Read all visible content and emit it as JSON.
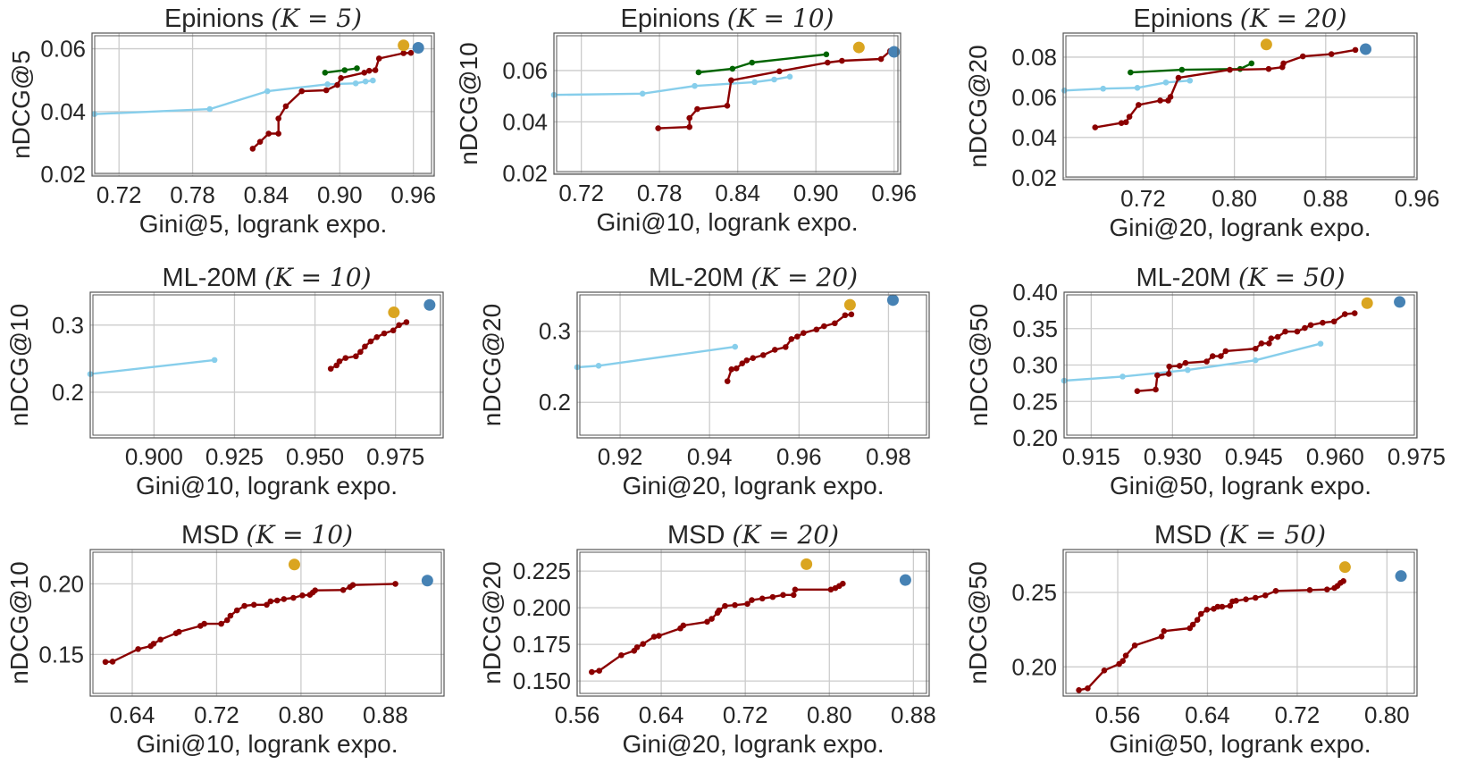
{
  "colors": {
    "red": "#8b0000",
    "lightblue": "#87ceeb",
    "green": "#006400",
    "orange": "#daa520",
    "blue": "#4682b4",
    "grid": "#cccccc",
    "frame": "#555555"
  },
  "chart_data": [
    {
      "type": "line",
      "title_name": "Epinions",
      "title_math": "(K = 5)",
      "xlabel": "Gini@5, logrank expo.",
      "ylabel": "nDCG@5",
      "xlim": [
        0.698,
        0.977
      ],
      "ylim": [
        0.0195,
        0.065
      ],
      "grid": true,
      "xticks": [
        "0.72",
        "0.78",
        "0.84",
        "0.90",
        "0.96"
      ],
      "yticks": [
        "0.02",
        "0.04",
        "0.06"
      ],
      "series": [
        {
          "color": "#87ceeb",
          "x": [
            0.7,
            0.794,
            0.841,
            0.89,
            0.913,
            0.921,
            0.927
          ],
          "y": [
            0.0392,
            0.0408,
            0.0465,
            0.0487,
            0.049,
            0.0496,
            0.0499
          ]
        },
        {
          "color": "#006400",
          "x": [
            0.888,
            0.904,
            0.914
          ],
          "y": [
            0.0524,
            0.0532,
            0.0538
          ]
        },
        {
          "color": "#8b0000",
          "x": [
            0.829,
            0.835,
            0.842,
            0.85,
            0.85,
            0.856,
            0.869,
            0.889,
            0.898,
            0.901,
            0.92,
            0.924,
            0.929,
            0.932,
            0.952,
            0.958
          ],
          "y": [
            0.0282,
            0.0304,
            0.033,
            0.033,
            0.0378,
            0.0417,
            0.0465,
            0.0468,
            0.0485,
            0.0507,
            0.0524,
            0.053,
            0.0532,
            0.0569,
            0.0586,
            0.0587
          ]
        }
      ],
      "points": [
        {
          "color": "#daa520",
          "x": 0.952,
          "y": 0.0611
        },
        {
          "color": "#4682b4",
          "x": 0.964,
          "y": 0.0603
        }
      ]
    },
    {
      "type": "line",
      "title_name": "Epinions",
      "title_math": "(K = 10)",
      "xlabel": "Gini@10, logrank expo.",
      "ylabel": "nDCG@10",
      "xlim": [
        0.699,
        0.965
      ],
      "ylim": [
        0.0196,
        0.0746
      ],
      "grid": true,
      "xticks": [
        "0.72",
        "0.78",
        "0.84",
        "0.90",
        "0.96"
      ],
      "yticks": [
        "0.02",
        "0.04",
        "0.06"
      ],
      "series": [
        {
          "color": "#87ceeb",
          "x": [
            0.699,
            0.767,
            0.807,
            0.853,
            0.868,
            0.88
          ],
          "y": [
            0.0505,
            0.051,
            0.054,
            0.0555,
            0.0565,
            0.0576
          ]
        },
        {
          "color": "#006400",
          "x": [
            0.81,
            0.836,
            0.851,
            0.908
          ],
          "y": [
            0.0593,
            0.0607,
            0.0631,
            0.0663
          ]
        },
        {
          "color": "#8b0000",
          "x": [
            0.779,
            0.803,
            0.803,
            0.809,
            0.832,
            0.835,
            0.872,
            0.909,
            0.92,
            0.95,
            0.957
          ],
          "y": [
            0.0375,
            0.038,
            0.0415,
            0.045,
            0.0463,
            0.0562,
            0.0597,
            0.0631,
            0.0638,
            0.0645,
            0.0676
          ]
        }
      ],
      "points": [
        {
          "color": "#daa520",
          "x": 0.933,
          "y": 0.069
        },
        {
          "color": "#4682b4",
          "x": 0.96,
          "y": 0.0673
        }
      ]
    },
    {
      "type": "line",
      "title_name": "Epinions",
      "title_math": "(K = 20)",
      "xlabel": "Gini@20, logrank expo.",
      "ylabel": "nDCG@20",
      "xlim": [
        0.65,
        0.96
      ],
      "ylim": [
        0.019,
        0.092
      ],
      "grid": true,
      "xticks": [
        "0.72",
        "0.80",
        "0.88",
        "0.96"
      ],
      "yticks": [
        "0.02",
        "0.04",
        "0.06",
        "0.08"
      ],
      "series": [
        {
          "color": "#87ceeb",
          "x": [
            0.651,
            0.685,
            0.715,
            0.74,
            0.761
          ],
          "y": [
            0.0634,
            0.0643,
            0.0647,
            0.0674,
            0.0683
          ]
        },
        {
          "color": "#006400",
          "x": [
            0.709,
            0.754,
            0.805,
            0.815
          ],
          "y": [
            0.0724,
            0.0737,
            0.0741,
            0.0769
          ]
        },
        {
          "color": "#8b0000",
          "x": [
            0.678,
            0.701,
            0.705,
            0.708,
            0.716,
            0.735,
            0.742,
            0.744,
            0.751,
            0.796,
            0.83,
            0.842,
            0.843,
            0.86,
            0.885,
            0.906
          ],
          "y": [
            0.045,
            0.0472,
            0.0476,
            0.0503,
            0.0562,
            0.0584,
            0.0584,
            0.0602,
            0.0697,
            0.0737,
            0.0741,
            0.075,
            0.0769,
            0.0804,
            0.0815,
            0.0836
          ]
        }
      ],
      "points": [
        {
          "color": "#daa520",
          "x": 0.828,
          "y": 0.0863
        },
        {
          "color": "#4682b4",
          "x": 0.915,
          "y": 0.084
        }
      ]
    },
    {
      "type": "line",
      "title_name": "ML-20M",
      "title_math": "(K = 10)",
      "xlabel": "Gini@10, logrank expo.",
      "ylabel": "nDCG@10",
      "xlim": [
        0.8802,
        0.9898
      ],
      "ylim": [
        0.132,
        0.349
      ],
      "grid": true,
      "xticks": [
        "0.900",
        "0.925",
        "0.950",
        "0.975"
      ],
      "yticks": [
        "0.2",
        "0.3"
      ],
      "series": [
        {
          "color": "#87ceeb",
          "x": [
            0.8802,
            0.9188
          ],
          "y": [
            0.227,
            0.248
          ]
        },
        {
          "color": "#8b0000",
          "x": [
            0.9549,
            0.9567,
            0.9576,
            0.9595,
            0.9627,
            0.9641,
            0.9655,
            0.9673,
            0.9692,
            0.9715,
            0.9743,
            0.9761,
            0.9784
          ],
          "y": [
            0.235,
            0.24,
            0.246,
            0.251,
            0.2535,
            0.26,
            0.268,
            0.2757,
            0.282,
            0.2876,
            0.292,
            0.3,
            0.3044
          ]
        }
      ],
      "points": [
        {
          "color": "#daa520",
          "x": 0.9745,
          "y": 0.319
        },
        {
          "color": "#4682b4",
          "x": 0.9856,
          "y": 0.33
        }
      ]
    },
    {
      "type": "line",
      "title_name": "ML-20M",
      "title_math": "(K = 20)",
      "xlabel": "Gini@20, logrank expo.",
      "ylabel": "nDCG@20",
      "xlim": [
        0.9104,
        0.9891
      ],
      "ylim": [
        0.15,
        0.355
      ],
      "grid": true,
      "xticks": [
        "0.92",
        "0.94",
        "0.96",
        "0.98"
      ],
      "yticks": [
        "0.2",
        "0.3"
      ],
      "series": [
        {
          "color": "#87ceeb",
          "x": [
            0.9104,
            0.9152,
            0.9457
          ],
          "y": [
            0.2494,
            0.2515,
            0.2782
          ]
        },
        {
          "color": "#8b0000",
          "x": [
            0.944,
            0.9449,
            0.946,
            0.9473,
            0.9483,
            0.9497,
            0.952,
            0.9546,
            0.957,
            0.9583,
            0.9596,
            0.961,
            0.9639,
            0.9656,
            0.968,
            0.9703,
            0.9717
          ],
          "y": [
            0.2297,
            0.2464,
            0.2477,
            0.2548,
            0.259,
            0.2623,
            0.2665,
            0.274,
            0.2778,
            0.2891,
            0.2925,
            0.2975,
            0.3025,
            0.3071,
            0.3113,
            0.3226,
            0.3238
          ]
        }
      ],
      "points": [
        {
          "color": "#daa520",
          "x": 0.9714,
          "y": 0.3372
        },
        {
          "color": "#4682b4",
          "x": 0.981,
          "y": 0.3439
        }
      ]
    },
    {
      "type": "line",
      "title_name": "ML-20M",
      "title_math": "(K = 50)",
      "xlabel": "Gini@50, logrank expo.",
      "ylabel": "nDCG@50",
      "xlim": [
        0.91,
        0.9751
      ],
      "ylim": [
        0.2,
        0.4
      ],
      "grid": true,
      "xticks": [
        "0.915",
        "0.930",
        "0.945",
        "0.960",
        "0.975"
      ],
      "yticks": [
        "0.20",
        "0.25",
        "0.30",
        "0.35",
        "0.40"
      ],
      "series": [
        {
          "color": "#87ceeb",
          "x": [
            0.91,
            0.9208,
            0.9328,
            0.9453,
            0.9573
          ],
          "y": [
            0.2785,
            0.2842,
            0.2931,
            0.3065,
            0.3293
          ]
        },
        {
          "color": "#8b0000",
          "x": [
            0.9235,
            0.9269,
            0.9272,
            0.9293,
            0.9294,
            0.9313,
            0.9324,
            0.9363,
            0.9374,
            0.9389,
            0.9398,
            0.9453,
            0.9464,
            0.9478,
            0.9482,
            0.9494,
            0.9508,
            0.953,
            0.9544,
            0.9555,
            0.9577,
            0.9598,
            0.9618,
            0.9636
          ],
          "y": [
            0.2642,
            0.2663,
            0.2858,
            0.2878,
            0.298,
            0.2988,
            0.3028,
            0.3049,
            0.3122,
            0.3122,
            0.3191,
            0.3224,
            0.3297,
            0.3297,
            0.3366,
            0.3386,
            0.3459,
            0.3459,
            0.3508,
            0.3549,
            0.3581,
            0.3598,
            0.3699,
            0.3711
          ]
        }
      ],
      "points": [
        {
          "color": "#daa520",
          "x": 0.9659,
          "y": 0.385
        },
        {
          "color": "#4682b4",
          "x": 0.9719,
          "y": 0.3866
        }
      ]
    },
    {
      "type": "line",
      "title_name": "MSD",
      "title_math": "(K = 10)",
      "xlabel": "Gini@10, logrank expo.",
      "ylabel": "nDCG@10",
      "xlim": [
        0.6002,
        0.9356
      ],
      "ylim": [
        0.1205,
        0.2243
      ],
      "grid": true,
      "xticks": [
        "0.64",
        "0.72",
        "0.80",
        "0.88"
      ],
      "yticks": [
        "0.15",
        "0.20"
      ],
      "series": [
        {
          "color": "#8b0000",
          "x": [
            0.6146,
            0.6214,
            0.6456,
            0.6575,
            0.6603,
            0.6668,
            0.6815,
            0.6843,
            0.7046,
            0.7083,
            0.7244,
            0.73,
            0.7331,
            0.7393,
            0.7464,
            0.7554,
            0.7675,
            0.7711,
            0.7774,
            0.7838,
            0.7928,
            0.8013,
            0.8084,
            0.8112,
            0.8134,
            0.84,
            0.8464,
            0.8492,
            0.8895
          ],
          "y": [
            0.1447,
            0.1449,
            0.1538,
            0.1559,
            0.1576,
            0.1605,
            0.165,
            0.166,
            0.1702,
            0.1717,
            0.1717,
            0.1743,
            0.1774,
            0.1812,
            0.1844,
            0.1852,
            0.1852,
            0.1876,
            0.1882,
            0.1892,
            0.1901,
            0.1918,
            0.1922,
            0.1939,
            0.1954,
            0.1956,
            0.1977,
            0.1992,
            0.2
          ]
        }
      ],
      "points": [
        {
          "color": "#daa520",
          "x": 0.7937,
          "y": 0.2137
        },
        {
          "color": "#4682b4",
          "x": 0.9198,
          "y": 0.2023
        }
      ]
    },
    {
      "type": "line",
      "title_name": "MSD",
      "title_math": "(K = 20)",
      "xlabel": "Gini@20, logrank expo.",
      "ylabel": "nDCG@20",
      "xlim": [
        0.56,
        0.895
      ],
      "ylim": [
        0.1397,
        0.2397
      ],
      "grid": true,
      "xticks": [
        "0.56",
        "0.64",
        "0.72",
        "0.80",
        "0.88"
      ],
      "yticks": [
        "0.150",
        "0.175",
        "0.200",
        "0.225"
      ],
      "series": [
        {
          "color": "#8b0000",
          "x": [
            0.5739,
            0.581,
            0.602,
            0.6142,
            0.617,
            0.6227,
            0.6332,
            0.6377,
            0.6582,
            0.661,
            0.6837,
            0.688,
            0.6936,
            0.695,
            0.7007,
            0.7101,
            0.722,
            0.7262,
            0.7362,
            0.7461,
            0.756,
            0.766,
            0.7674,
            0.8014,
            0.8057,
            0.8094,
            0.8128
          ],
          "y": [
            0.1561,
            0.157,
            0.1676,
            0.1706,
            0.173,
            0.1753,
            0.1802,
            0.1808,
            0.1859,
            0.1879,
            0.1904,
            0.1924,
            0.1965,
            0.1981,
            0.2012,
            0.2018,
            0.2026,
            0.2052,
            0.2063,
            0.2073,
            0.2087,
            0.2087,
            0.2124,
            0.2124,
            0.2134,
            0.2148,
            0.2164
          ]
        }
      ],
      "points": [
        {
          "color": "#daa520",
          "x": 0.7782,
          "y": 0.2297
        },
        {
          "color": "#4682b4",
          "x": 0.8724,
          "y": 0.2189
        }
      ]
    },
    {
      "type": "line",
      "title_name": "MSD",
      "title_math": "(K = 50)",
      "xlabel": "Gini@50, logrank expo.",
      "ylabel": "nDCG@50",
      "xlim": [
        0.5114,
        0.8268
      ],
      "ylim": [
        0.1804,
        0.2788
      ],
      "grid": true,
      "xticks": [
        "0.56",
        "0.64",
        "0.72",
        "0.80"
      ],
      "yticks": [
        "0.20",
        "0.25"
      ],
      "series": [
        {
          "color": "#8b0000",
          "x": [
            0.5254,
            0.5332,
            0.548,
            0.5613,
            0.5645,
            0.5672,
            0.5752,
            0.5991,
            0.6012,
            0.6243,
            0.627,
            0.631,
            0.6342,
            0.6395,
            0.6456,
            0.6491,
            0.6531,
            0.6602,
            0.6623,
            0.6655,
            0.6743,
            0.6828,
            0.6916,
            0.7009,
            0.7312,
            0.7466,
            0.7532,
            0.7559,
            0.7586,
            0.7612
          ],
          "y": [
            0.1844,
            0.1856,
            0.1976,
            0.202,
            0.204,
            0.2076,
            0.2144,
            0.2204,
            0.224,
            0.226,
            0.2284,
            0.2316,
            0.2356,
            0.2384,
            0.239,
            0.2404,
            0.2404,
            0.241,
            0.244,
            0.2444,
            0.2454,
            0.2464,
            0.248,
            0.251,
            0.2516,
            0.252,
            0.253,
            0.2544,
            0.2564,
            0.2576
          ]
        }
      ],
      "points": [
        {
          "color": "#daa520",
          "x": 0.7626,
          "y": 0.267
        },
        {
          "color": "#4682b4",
          "x": 0.8125,
          "y": 0.261
        }
      ]
    }
  ]
}
